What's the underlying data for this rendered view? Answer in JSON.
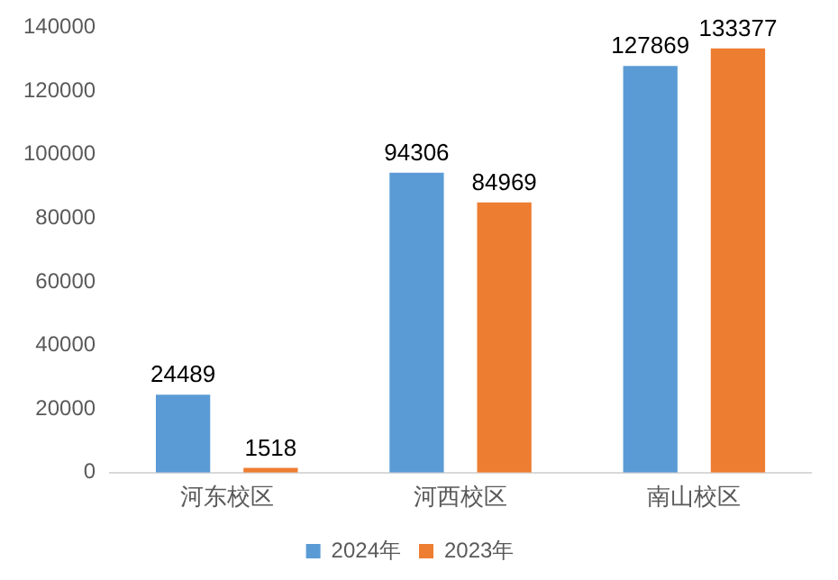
{
  "chart_data": {
    "type": "bar",
    "categories": [
      "河东校区",
      "河西校区",
      "南山校区"
    ],
    "series": [
      {
        "name": "2024年",
        "color": "#5b9bd5",
        "values": [
          24489,
          94306,
          127869
        ]
      },
      {
        "name": "2023年",
        "color": "#ed7d31",
        "values": [
          1518,
          84969,
          133377
        ]
      }
    ],
    "ylim": [
      0,
      140000
    ],
    "yticks": [
      0,
      20000,
      40000,
      60000,
      80000,
      100000,
      120000,
      140000
    ],
    "grid": false,
    "legend": "bottom",
    "data_labels": true
  }
}
